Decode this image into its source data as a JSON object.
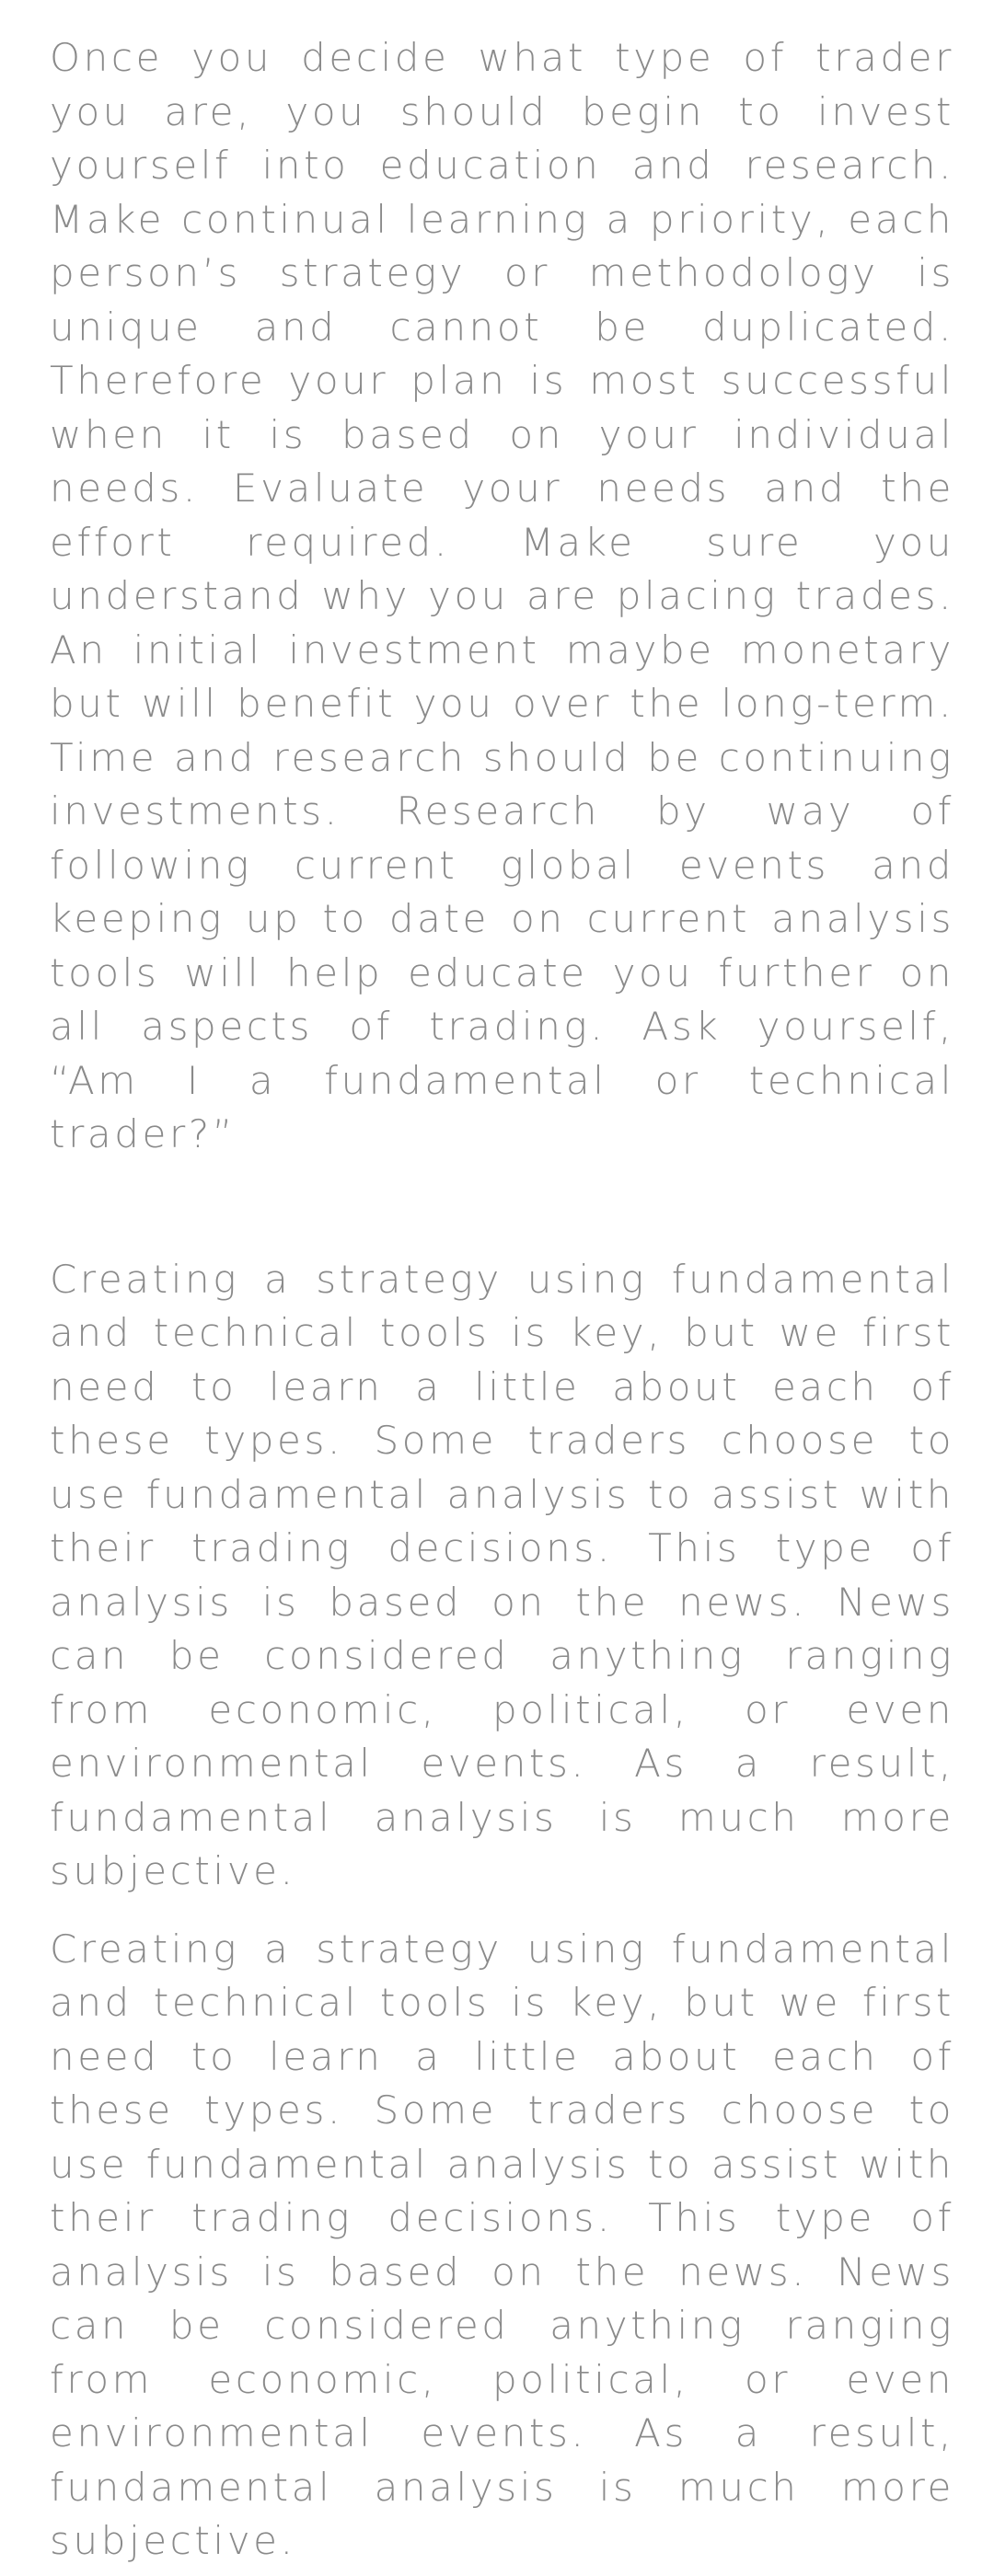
{
  "article": {
    "paragraphs": [
      "Once you decide what type of trader you are, you should begin to invest yourself into education and research. Make continual learning a priority, each person’s strategy or methodology is unique and cannot be duplicated. Therefore your plan is most successful when it is based on your individual needs. Evaluate your needs and the effort required. Make sure you understand why you are placing trades. An initial investment maybe monetary but will benefit you over the long-term. Time and research should be continuing investments. Research by way of following current global events and keeping up to date on current analysis tools will help educate you further on all aspects of trading. Ask yourself, “Am I a fundamental or technical trader?”",
      "Creating a strategy using fundamental and technical tools is key, but we first need to learn a little about each of these types. Some traders choose to use fundamental analysis to assist with their trading decisions. This type of analysis is based on the news. News can be considered anything ranging from economic, political, or even environmental events. As a result, fundamental analysis is much more subjective.",
      "Creating a strategy using fundamental and technical tools is key, but we first need to learn a little about each of these types. Some traders choose to use fundamental analysis to assist with their trading decisions. This type of analysis is based on the news. News can be considered anything ranging from economic, political, or even environmental events. As a result, fundamental analysis is much more subjective."
    ]
  },
  "colors": {
    "text": "#8a8a8a",
    "background": "#ffffff"
  }
}
